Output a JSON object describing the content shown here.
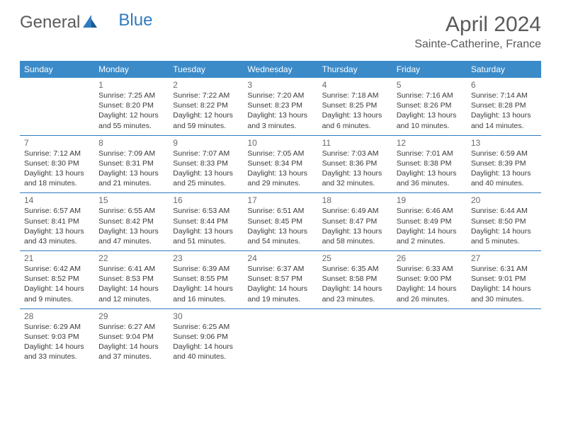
{
  "logo": {
    "part1": "General",
    "part2": "Blue"
  },
  "title": "April 2024",
  "location": "Sainte-Catherine, France",
  "weekdays": [
    "Sunday",
    "Monday",
    "Tuesday",
    "Wednesday",
    "Thursday",
    "Friday",
    "Saturday"
  ],
  "header_bg": "#3b8bc9",
  "header_text": "#ffffff",
  "divider_color": "#2f7bbf",
  "weeks": [
    [
      {
        "num": "",
        "lines": []
      },
      {
        "num": "1",
        "lines": [
          "Sunrise: 7:25 AM",
          "Sunset: 8:20 PM",
          "Daylight: 12 hours",
          "and 55 minutes."
        ]
      },
      {
        "num": "2",
        "lines": [
          "Sunrise: 7:22 AM",
          "Sunset: 8:22 PM",
          "Daylight: 12 hours",
          "and 59 minutes."
        ]
      },
      {
        "num": "3",
        "lines": [
          "Sunrise: 7:20 AM",
          "Sunset: 8:23 PM",
          "Daylight: 13 hours",
          "and 3 minutes."
        ]
      },
      {
        "num": "4",
        "lines": [
          "Sunrise: 7:18 AM",
          "Sunset: 8:25 PM",
          "Daylight: 13 hours",
          "and 6 minutes."
        ]
      },
      {
        "num": "5",
        "lines": [
          "Sunrise: 7:16 AM",
          "Sunset: 8:26 PM",
          "Daylight: 13 hours",
          "and 10 minutes."
        ]
      },
      {
        "num": "6",
        "lines": [
          "Sunrise: 7:14 AM",
          "Sunset: 8:28 PM",
          "Daylight: 13 hours",
          "and 14 minutes."
        ]
      }
    ],
    [
      {
        "num": "7",
        "lines": [
          "Sunrise: 7:12 AM",
          "Sunset: 8:30 PM",
          "Daylight: 13 hours",
          "and 18 minutes."
        ]
      },
      {
        "num": "8",
        "lines": [
          "Sunrise: 7:09 AM",
          "Sunset: 8:31 PM",
          "Daylight: 13 hours",
          "and 21 minutes."
        ]
      },
      {
        "num": "9",
        "lines": [
          "Sunrise: 7:07 AM",
          "Sunset: 8:33 PM",
          "Daylight: 13 hours",
          "and 25 minutes."
        ]
      },
      {
        "num": "10",
        "lines": [
          "Sunrise: 7:05 AM",
          "Sunset: 8:34 PM",
          "Daylight: 13 hours",
          "and 29 minutes."
        ]
      },
      {
        "num": "11",
        "lines": [
          "Sunrise: 7:03 AM",
          "Sunset: 8:36 PM",
          "Daylight: 13 hours",
          "and 32 minutes."
        ]
      },
      {
        "num": "12",
        "lines": [
          "Sunrise: 7:01 AM",
          "Sunset: 8:38 PM",
          "Daylight: 13 hours",
          "and 36 minutes."
        ]
      },
      {
        "num": "13",
        "lines": [
          "Sunrise: 6:59 AM",
          "Sunset: 8:39 PM",
          "Daylight: 13 hours",
          "and 40 minutes."
        ]
      }
    ],
    [
      {
        "num": "14",
        "lines": [
          "Sunrise: 6:57 AM",
          "Sunset: 8:41 PM",
          "Daylight: 13 hours",
          "and 43 minutes."
        ]
      },
      {
        "num": "15",
        "lines": [
          "Sunrise: 6:55 AM",
          "Sunset: 8:42 PM",
          "Daylight: 13 hours",
          "and 47 minutes."
        ]
      },
      {
        "num": "16",
        "lines": [
          "Sunrise: 6:53 AM",
          "Sunset: 8:44 PM",
          "Daylight: 13 hours",
          "and 51 minutes."
        ]
      },
      {
        "num": "17",
        "lines": [
          "Sunrise: 6:51 AM",
          "Sunset: 8:45 PM",
          "Daylight: 13 hours",
          "and 54 minutes."
        ]
      },
      {
        "num": "18",
        "lines": [
          "Sunrise: 6:49 AM",
          "Sunset: 8:47 PM",
          "Daylight: 13 hours",
          "and 58 minutes."
        ]
      },
      {
        "num": "19",
        "lines": [
          "Sunrise: 6:46 AM",
          "Sunset: 8:49 PM",
          "Daylight: 14 hours",
          "and 2 minutes."
        ]
      },
      {
        "num": "20",
        "lines": [
          "Sunrise: 6:44 AM",
          "Sunset: 8:50 PM",
          "Daylight: 14 hours",
          "and 5 minutes."
        ]
      }
    ],
    [
      {
        "num": "21",
        "lines": [
          "Sunrise: 6:42 AM",
          "Sunset: 8:52 PM",
          "Daylight: 14 hours",
          "and 9 minutes."
        ]
      },
      {
        "num": "22",
        "lines": [
          "Sunrise: 6:41 AM",
          "Sunset: 8:53 PM",
          "Daylight: 14 hours",
          "and 12 minutes."
        ]
      },
      {
        "num": "23",
        "lines": [
          "Sunrise: 6:39 AM",
          "Sunset: 8:55 PM",
          "Daylight: 14 hours",
          "and 16 minutes."
        ]
      },
      {
        "num": "24",
        "lines": [
          "Sunrise: 6:37 AM",
          "Sunset: 8:57 PM",
          "Daylight: 14 hours",
          "and 19 minutes."
        ]
      },
      {
        "num": "25",
        "lines": [
          "Sunrise: 6:35 AM",
          "Sunset: 8:58 PM",
          "Daylight: 14 hours",
          "and 23 minutes."
        ]
      },
      {
        "num": "26",
        "lines": [
          "Sunrise: 6:33 AM",
          "Sunset: 9:00 PM",
          "Daylight: 14 hours",
          "and 26 minutes."
        ]
      },
      {
        "num": "27",
        "lines": [
          "Sunrise: 6:31 AM",
          "Sunset: 9:01 PM",
          "Daylight: 14 hours",
          "and 30 minutes."
        ]
      }
    ],
    [
      {
        "num": "28",
        "lines": [
          "Sunrise: 6:29 AM",
          "Sunset: 9:03 PM",
          "Daylight: 14 hours",
          "and 33 minutes."
        ]
      },
      {
        "num": "29",
        "lines": [
          "Sunrise: 6:27 AM",
          "Sunset: 9:04 PM",
          "Daylight: 14 hours",
          "and 37 minutes."
        ]
      },
      {
        "num": "30",
        "lines": [
          "Sunrise: 6:25 AM",
          "Sunset: 9:06 PM",
          "Daylight: 14 hours",
          "and 40 minutes."
        ]
      },
      {
        "num": "",
        "lines": []
      },
      {
        "num": "",
        "lines": []
      },
      {
        "num": "",
        "lines": []
      },
      {
        "num": "",
        "lines": []
      }
    ]
  ]
}
